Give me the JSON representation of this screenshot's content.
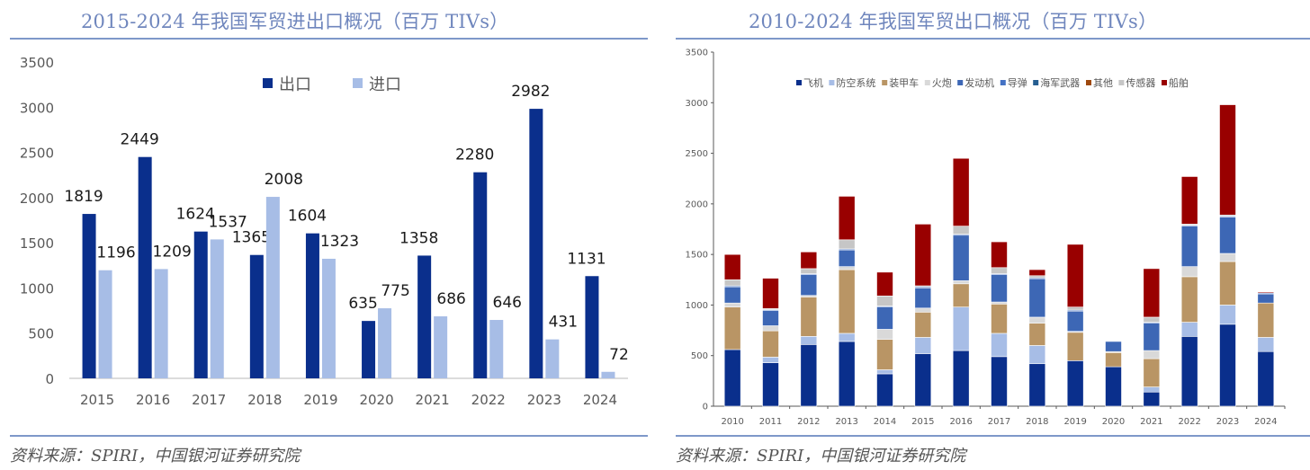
{
  "left_panel": {
    "title": "2015-2024 年我国军贸进出口概况（百万 TIVs）",
    "source": "资料来源：SPIRI，中国银河证券研究院"
  },
  "right_panel": {
    "title": "2010-2024 年我国军贸出口概况（百万 TIVs）",
    "source": "资料来源：SPIRI，中国银河证券研究院"
  },
  "chart_data": [
    {
      "type": "bar",
      "title": "2015-2024 年我国军贸进出口概况（百万 TIVs）",
      "xlabel": "",
      "ylabel": "",
      "ylim": [
        0,
        3500
      ],
      "yticks": [
        0,
        500,
        1000,
        1500,
        2000,
        2500,
        3000,
        3500
      ],
      "grid": false,
      "legend_position": "top-center",
      "categories": [
        "2015",
        "2016",
        "2017",
        "2018",
        "2019",
        "2020",
        "2021",
        "2022",
        "2023",
        "2024"
      ],
      "series": [
        {
          "name": "出口",
          "color": "#0a2f8c",
          "values": [
            1819,
            2449,
            1624,
            1365,
            1604,
            635,
            1358,
            2280,
            2982,
            1131
          ]
        },
        {
          "name": "进口",
          "color": "#a7bde6",
          "values": [
            1196,
            1209,
            1537,
            2008,
            1323,
            775,
            686,
            646,
            431,
            72
          ]
        }
      ],
      "data_labels": true
    },
    {
      "type": "bar",
      "stacked": true,
      "title": "2010-2024 年我国军贸出口概况（百万 TIVs）",
      "xlabel": "",
      "ylabel": "",
      "ylim": [
        0,
        3500
      ],
      "yticks": [
        0,
        500,
        1000,
        1500,
        2000,
        2500,
        3000,
        3500
      ],
      "grid": false,
      "legend_position": "top-center",
      "categories": [
        "2010",
        "2011",
        "2012",
        "2013",
        "2014",
        "2015",
        "2016",
        "2017",
        "2018",
        "2019",
        "2020",
        "2021",
        "2022",
        "2023",
        "2024"
      ],
      "series": [
        {
          "name": "飞机",
          "color": "#0a2f8c",
          "values": [
            560,
            430,
            610,
            640,
            320,
            520,
            550,
            490,
            420,
            450,
            390,
            140,
            690,
            810,
            540
          ]
        },
        {
          "name": "防空系统",
          "color": "#a7bde6",
          "values": [
            0,
            55,
            80,
            80,
            40,
            160,
            430,
            230,
            180,
            0,
            0,
            50,
            140,
            190,
            140
          ]
        },
        {
          "name": "装甲车",
          "color": "#b99565",
          "values": [
            420,
            260,
            390,
            630,
            300,
            250,
            230,
            290,
            220,
            280,
            140,
            280,
            450,
            430,
            340
          ]
        },
        {
          "name": "火炮",
          "color": "#d9d9d9",
          "values": [
            40,
            50,
            15,
            30,
            100,
            40,
            30,
            20,
            60,
            10,
            10,
            80,
            100,
            80,
            0
          ]
        },
        {
          "name": "发动机",
          "color": "#3d67b5",
          "values": [
            160,
            150,
            205,
            165,
            220,
            200,
            450,
            270,
            380,
            200,
            100,
            270,
            400,
            360,
            90
          ]
        },
        {
          "name": "导弹",
          "color": "#4472c4",
          "values": [
            10,
            10,
            10,
            10,
            10,
            10,
            10,
            10,
            10,
            10,
            0,
            10,
            10,
            10,
            10
          ]
        },
        {
          "name": "海军武器",
          "color": "#255e91",
          "values": [
            0,
            0,
            0,
            0,
            0,
            0,
            0,
            0,
            0,
            0,
            0,
            0,
            0,
            0,
            0
          ]
        },
        {
          "name": "其他",
          "color": "#9e480e",
          "values": [
            0,
            0,
            0,
            0,
            0,
            0,
            0,
            0,
            0,
            0,
            0,
            0,
            0,
            0,
            0
          ]
        },
        {
          "name": "传感器",
          "color": "#c6c6c6",
          "values": [
            60,
            10,
            50,
            90,
            100,
            10,
            80,
            60,
            20,
            30,
            0,
            50,
            10,
            10,
            0
          ]
        },
        {
          "name": "船舶",
          "color": "#990000",
          "values": [
            250,
            300,
            165,
            430,
            235,
            610,
            670,
            255,
            60,
            620,
            0,
            480,
            470,
            1090,
            10
          ]
        }
      ]
    }
  ]
}
